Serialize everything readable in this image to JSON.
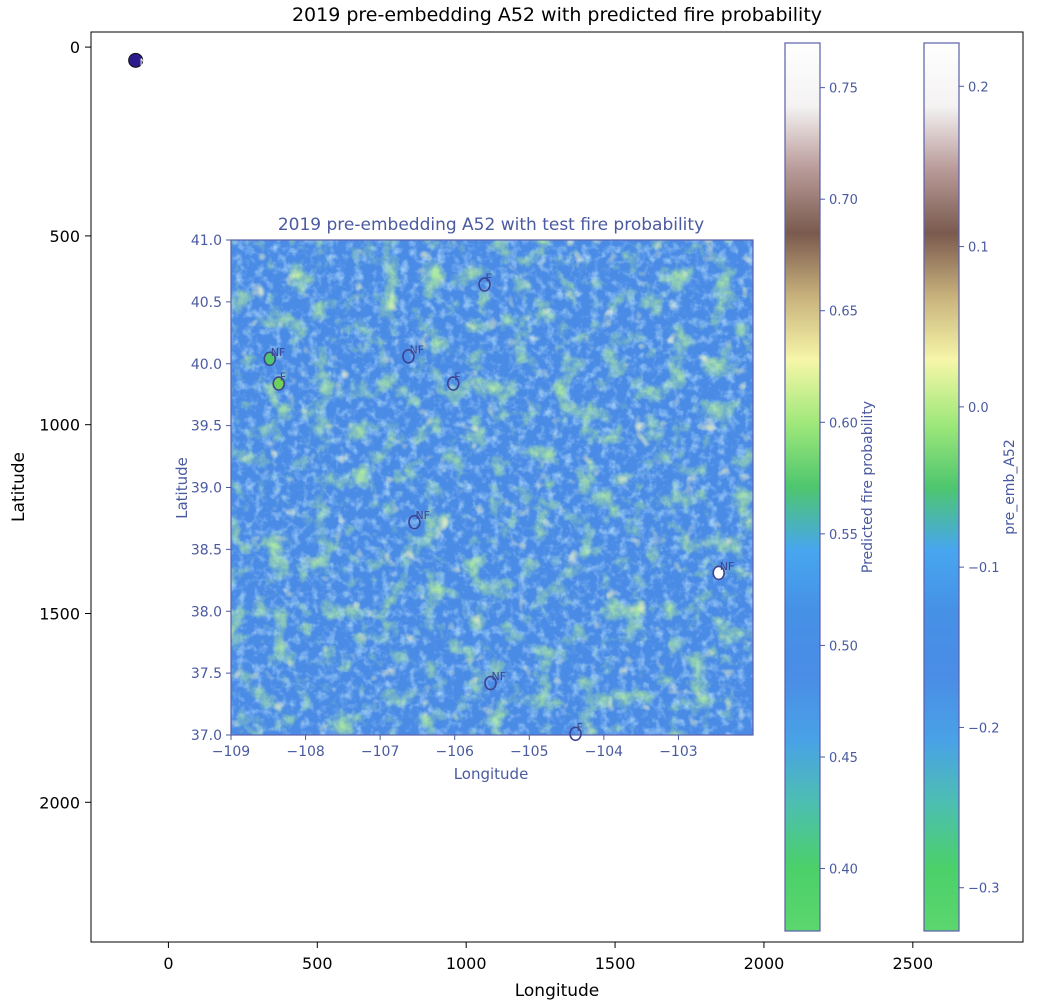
{
  "chart_data": {
    "type": "heatmap",
    "title": "2019 pre-embedding A52 with predicted fire probability",
    "xlabel": "Longitude",
    "ylabel": "Latitude",
    "xlim": [
      -260,
      2870
    ],
    "ylim": [
      2370,
      -40
    ],
    "y_inverted": true,
    "x_ticks": [
      0,
      500,
      1000,
      1500,
      2000,
      2500
    ],
    "y_ticks": [
      0,
      500,
      1000,
      1500,
      2000
    ],
    "grid": false,
    "outer_point": {
      "x": -110,
      "y": 35,
      "label": "N",
      "color": "#2a1a8c"
    },
    "inset": {
      "title": "2019 pre-embedding A52 with test fire probability",
      "xlabel": "Longitude",
      "ylabel": "Latitude",
      "xlim": [
        -109,
        -102
      ],
      "ylim": [
        37.0,
        41.0
      ],
      "x_ticks": [
        -109,
        -108,
        -107,
        -106,
        -105,
        -104,
        -103
      ],
      "y_ticks": [
        37.0,
        37.5,
        38.0,
        38.5,
        39.0,
        39.5,
        40.0,
        40.5,
        41.0
      ],
      "markers": [
        {
          "lon": -105.6,
          "lat": 40.64,
          "label": "F",
          "fill": "none"
        },
        {
          "lon": -108.48,
          "lat": 40.04,
          "label": "NF",
          "fill": "#4fc76a"
        },
        {
          "lon": -108.36,
          "lat": 39.84,
          "label": "F",
          "fill": "#6fd05a"
        },
        {
          "lon": -106.62,
          "lat": 40.06,
          "label": "NF",
          "fill": "none"
        },
        {
          "lon": -106.02,
          "lat": 39.84,
          "label": "F",
          "fill": "none"
        },
        {
          "lon": -106.54,
          "lat": 38.72,
          "label": "NF",
          "fill": "none"
        },
        {
          "lon": -105.52,
          "lat": 37.42,
          "label": "NF",
          "fill": "none"
        },
        {
          "lon": -102.46,
          "lat": 38.31,
          "label": "NF",
          "fill": "#ffffff"
        },
        {
          "lon": -104.38,
          "lat": 37.01,
          "label": "F",
          "fill": "none"
        }
      ]
    },
    "colorbars": [
      {
        "label": "Predicted fire probability",
        "range": [
          0.372,
          0.77
        ],
        "ticks": [
          0.4,
          0.45,
          0.5,
          0.55,
          0.6,
          0.65,
          0.7,
          0.75
        ]
      },
      {
        "label": "pre_emb_A52",
        "range": [
          -0.327,
          0.227
        ],
        "ticks": [
          -0.3,
          -0.2,
          -0.1,
          0.0,
          0.1,
          0.2
        ]
      }
    ],
    "colormap": [
      "#5cd66e",
      "#4bd06a",
      "#4dbfb0",
      "#49a2e6",
      "#4a8de6",
      "#4690e6",
      "#47a6ef",
      "#4ec66e",
      "#9fe87a",
      "#f6f6a8",
      "#c8b27c",
      "#7a5a4e",
      "#b89a98",
      "#f4f2f2",
      "#ffffff"
    ]
  }
}
